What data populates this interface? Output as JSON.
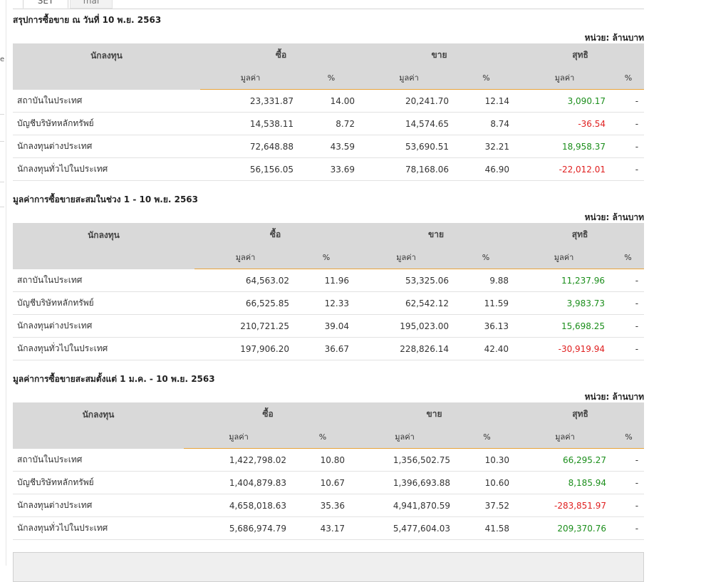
{
  "tabs": [
    "SET",
    "mai"
  ],
  "unit_label": "หน่วย: ล้านบาท",
  "headers": {
    "investor": "นักลงทุน",
    "buy": "ซื้อ",
    "sell": "ขาย",
    "net": "สุทธิ",
    "value": "มูลค่า",
    "percent": "%"
  },
  "sections": [
    {
      "title": "สรุปการซื้อขาย ณ วันที่ 10 พ.ย. 2563",
      "rows": [
        {
          "name": "สถาบันในประเทศ",
          "buy_value": "23,331.87",
          "buy_pct": "14.00",
          "sell_value": "20,241.70",
          "sell_pct": "12.14",
          "net_value": "3,090.17",
          "net_pct": "-"
        },
        {
          "name": "บัญชีบริษัทหลักทรัพย์",
          "buy_value": "14,538.11",
          "buy_pct": "8.72",
          "sell_value": "14,574.65",
          "sell_pct": "8.74",
          "net_value": "-36.54",
          "net_pct": "-"
        },
        {
          "name": "นักลงทุนต่างประเทศ",
          "buy_value": "72,648.88",
          "buy_pct": "43.59",
          "sell_value": "53,690.51",
          "sell_pct": "32.21",
          "net_value": "18,958.37",
          "net_pct": "-"
        },
        {
          "name": "นักลงทุนทั่วไปในประเทศ",
          "buy_value": "56,156.05",
          "buy_pct": "33.69",
          "sell_value": "78,168.06",
          "sell_pct": "46.90",
          "net_value": "-22,012.01",
          "net_pct": "-"
        }
      ]
    },
    {
      "title": "มูลค่าการซื้อขายสะสมในช่วง 1 - 10 พ.ย. 2563",
      "rows": [
        {
          "name": "สถาบันในประเทศ",
          "buy_value": "64,563.02",
          "buy_pct": "11.96",
          "sell_value": "53,325.06",
          "sell_pct": "9.88",
          "net_value": "11,237.96",
          "net_pct": "-"
        },
        {
          "name": "บัญชีบริษัทหลักทรัพย์",
          "buy_value": "66,525.85",
          "buy_pct": "12.33",
          "sell_value": "62,542.12",
          "sell_pct": "11.59",
          "net_value": "3,983.73",
          "net_pct": "-"
        },
        {
          "name": "นักลงทุนต่างประเทศ",
          "buy_value": "210,721.25",
          "buy_pct": "39.04",
          "sell_value": "195,023.00",
          "sell_pct": "36.13",
          "net_value": "15,698.25",
          "net_pct": "-"
        },
        {
          "name": "นักลงทุนทั่วไปในประเทศ",
          "buy_value": "197,906.20",
          "buy_pct": "36.67",
          "sell_value": "228,826.14",
          "sell_pct": "42.40",
          "net_value": "-30,919.94",
          "net_pct": "-"
        }
      ]
    },
    {
      "title": "มูลค่าการซื้อขายสะสมตั้งแต่ 1 ม.ค. - 10 พ.ย. 2563",
      "rows": [
        {
          "name": "สถาบันในประเทศ",
          "buy_value": "1,422,798.02",
          "buy_pct": "10.80",
          "sell_value": "1,356,502.75",
          "sell_pct": "10.30",
          "net_value": "66,295.27",
          "net_pct": "-"
        },
        {
          "name": "บัญชีบริษัทหลักทรัพย์",
          "buy_value": "1,404,879.83",
          "buy_pct": "10.67",
          "sell_value": "1,396,693.88",
          "sell_pct": "10.60",
          "net_value": "8,185.94",
          "net_pct": "-"
        },
        {
          "name": "นักลงทุนต่างประเทศ",
          "buy_value": "4,658,018.63",
          "buy_pct": "35.36",
          "sell_value": "4,941,870.59",
          "sell_pct": "37.52",
          "net_value": "-283,851.97",
          "net_pct": "-"
        },
        {
          "name": "นักลงทุนทั่วไปในประเทศ",
          "buy_value": "5,686,974.79",
          "buy_pct": "43.17",
          "sell_value": "5,477,604.03",
          "sell_pct": "41.58",
          "net_value": "209,370.76",
          "net_pct": "-"
        }
      ]
    }
  ],
  "colors": {
    "positive": "#1b8e1b",
    "negative": "#e02020",
    "header_bg": "#d9d9d9",
    "accent_underline": "#e8a33a"
  }
}
